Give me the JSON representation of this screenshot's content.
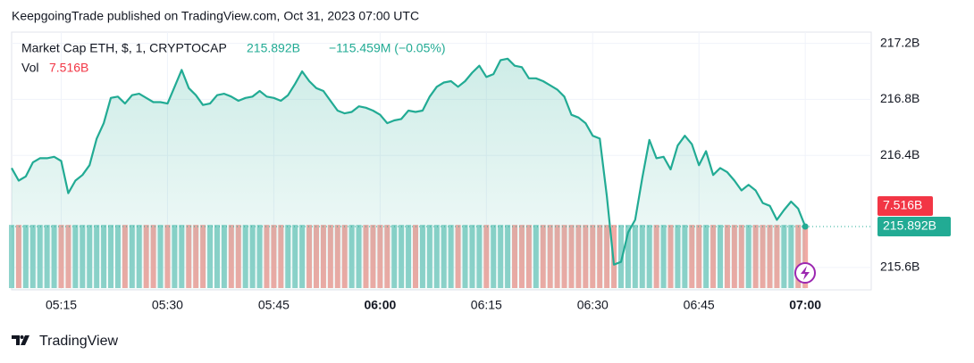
{
  "header": "KeepgoingTrade published on TradingView.com, Oct 31, 2023 07:00 UTC",
  "footer": "TradingView",
  "chart_data": {
    "type": "area",
    "legend": {
      "name": "Market Cap ETH, $, 1, CRYPTOCAP",
      "last": {
        "value": 215.892,
        "label": "215.892B"
      },
      "change": "−115.459M (−0.05%)",
      "volume_name": "Vol",
      "volume_last": {
        "value": 7.516,
        "label": "7.516B"
      }
    },
    "x": [
      "05:08",
      "05:09",
      "05:10",
      "05:11",
      "05:12",
      "05:13",
      "05:14",
      "05:15",
      "05:16",
      "05:17",
      "05:18",
      "05:19",
      "05:20",
      "05:21",
      "05:22",
      "05:23",
      "05:24",
      "05:25",
      "05:26",
      "05:27",
      "05:28",
      "05:29",
      "05:30",
      "05:31",
      "05:32",
      "05:33",
      "05:34",
      "05:35",
      "05:36",
      "05:37",
      "05:38",
      "05:39",
      "05:40",
      "05:41",
      "05:42",
      "05:43",
      "05:44",
      "05:45",
      "05:46",
      "05:47",
      "05:48",
      "05:49",
      "05:50",
      "05:51",
      "05:52",
      "05:53",
      "05:54",
      "05:55",
      "05:56",
      "05:57",
      "05:58",
      "05:59",
      "06:00",
      "06:01",
      "06:02",
      "06:03",
      "06:04",
      "06:05",
      "06:06",
      "06:07",
      "06:08",
      "06:09",
      "06:10",
      "06:11",
      "06:12",
      "06:13",
      "06:14",
      "06:15",
      "06:16",
      "06:17",
      "06:18",
      "06:19",
      "06:20",
      "06:21",
      "06:22",
      "06:23",
      "06:24",
      "06:25",
      "06:26",
      "06:27",
      "06:28",
      "06:29",
      "06:30",
      "06:31",
      "06:32",
      "06:33",
      "06:34",
      "06:35",
      "06:36",
      "06:37",
      "06:38",
      "06:39",
      "06:40",
      "06:41",
      "06:42",
      "06:43",
      "06:44",
      "06:45",
      "06:46",
      "06:47",
      "06:48",
      "06:49",
      "06:50",
      "06:51",
      "06:52",
      "06:53",
      "06:54",
      "06:55",
      "06:56",
      "06:57",
      "06:58",
      "06:59",
      "07:00"
    ],
    "series": [
      {
        "name": "Market Cap ETH",
        "color": "#22ab94",
        "values": [
          216.31,
          216.22,
          216.25,
          216.35,
          216.38,
          216.38,
          216.39,
          216.36,
          216.13,
          216.22,
          216.26,
          216.33,
          216.52,
          216.63,
          216.81,
          216.82,
          216.77,
          216.83,
          216.84,
          216.81,
          216.78,
          216.78,
          216.77,
          216.89,
          217.01,
          216.88,
          216.83,
          216.76,
          216.77,
          216.83,
          216.84,
          216.82,
          216.79,
          216.81,
          216.82,
          216.86,
          216.82,
          216.81,
          216.79,
          216.83,
          216.91,
          217.0,
          216.93,
          216.88,
          216.86,
          216.79,
          216.72,
          216.7,
          216.71,
          216.75,
          216.74,
          216.72,
          216.69,
          216.63,
          216.65,
          216.66,
          216.72,
          216.71,
          216.72,
          216.82,
          216.89,
          216.92,
          216.93,
          216.89,
          216.93,
          216.99,
          217.04,
          216.96,
          216.98,
          217.08,
          217.09,
          217.04,
          217.03,
          216.95,
          216.95,
          216.93,
          216.9,
          216.87,
          216.82,
          216.69,
          216.67,
          216.63,
          216.54,
          216.52,
          216.11,
          215.62,
          215.64,
          215.85,
          215.94,
          216.24,
          216.51,
          216.38,
          216.39,
          216.3,
          216.47,
          216.54,
          216.48,
          216.33,
          216.43,
          216.26,
          216.31,
          216.28,
          216.22,
          216.15,
          216.19,
          216.15,
          216.06,
          216.04,
          215.94,
          216.01,
          216.07,
          216.02,
          215.892
        ]
      },
      {
        "name": "Vol",
        "up_color": "#8fd3cb",
        "down_color": "#f2aaa5",
        "values": [
          7.5,
          7.5,
          7.5,
          7.5,
          7.5,
          7.5,
          7.5,
          7.5,
          7.5,
          7.5,
          7.5,
          7.5,
          7.5,
          7.5,
          7.5,
          7.5,
          7.5,
          7.5,
          7.5,
          7.5,
          7.5,
          7.5,
          7.5,
          7.5,
          7.5,
          7.5,
          7.5,
          7.5,
          7.5,
          7.5,
          7.5,
          7.5,
          7.5,
          7.5,
          7.5,
          7.5,
          7.5,
          7.5,
          7.5,
          7.5,
          7.5,
          7.5,
          7.5,
          7.5,
          7.5,
          7.5,
          7.5,
          7.5,
          7.5,
          7.5,
          7.5,
          7.5,
          7.5,
          7.5,
          7.5,
          7.5,
          7.5,
          7.5,
          7.5,
          7.5,
          7.5,
          7.5,
          7.5,
          7.5,
          7.5,
          7.5,
          7.5,
          7.5,
          7.5,
          7.5,
          7.5,
          7.5,
          7.5,
          7.5,
          7.5,
          7.5,
          7.5,
          7.5,
          7.5,
          7.5,
          7.5,
          7.5,
          7.5,
          7.5,
          7.5,
          7.5,
          7.5,
          7.5,
          7.5,
          7.5,
          7.5,
          7.5,
          7.5,
          7.5,
          7.5,
          7.5,
          7.5,
          7.5,
          7.5,
          7.5,
          7.5,
          7.5,
          7.5,
          7.5,
          7.5,
          7.5,
          7.5,
          7.5,
          7.5,
          7.5,
          7.5,
          7.5,
          7.516
        ]
      }
    ],
    "ylim": [
      215.44,
      217.28
    ],
    "yticks": [
      {
        "value": 217.2,
        "label": "217.2B"
      },
      {
        "value": 216.8,
        "label": "216.8B"
      },
      {
        "value": 216.4,
        "label": "216.4B"
      },
      {
        "value": 215.6,
        "label": "215.6B"
      }
    ],
    "xticks": [
      "05:15",
      "05:30",
      "05:45",
      "06:00",
      "06:15",
      "06:30",
      "06:45",
      "07:00"
    ],
    "grid": true
  }
}
